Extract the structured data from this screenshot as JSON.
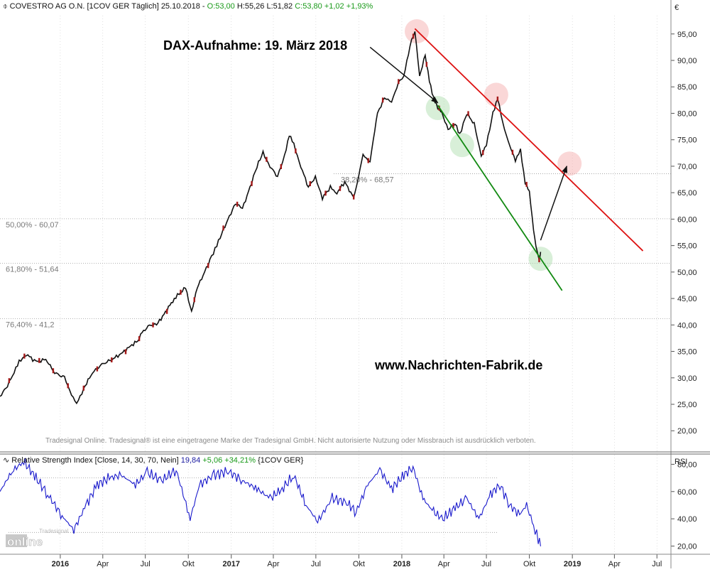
{
  "header": {
    "instrument": "COVESTRO AG O.N. [1COV GER Täglich]",
    "date": "25.10.2018",
    "open": "O:53,00",
    "high": "H:55,26",
    "low": "L:51,82",
    "close": "C:53,80",
    "change": "+1,02",
    "change_pct": "+1,93%"
  },
  "annotations": {
    "title": "DAX-Aufnahme: 19. März 2018",
    "website": "www.Nachrichten-Fabrik.de",
    "disclaimer": "Tradesignal Online. Tradesignal® ist eine eingetragene Marke der Tradesignal GmbH. Nicht autorisierte Nutzung oder Missbrauch ist ausdrücklich verboten.",
    "currency": "€"
  },
  "fib_levels": [
    {
      "label": "38,20% - 68,57",
      "value": 68.57
    },
    {
      "label": "50,00% - 60,07",
      "value": 60.07
    },
    {
      "label": "61,80% - 51,64",
      "value": 51.64
    },
    {
      "label": "76,40% - 41,2",
      "value": 41.2
    }
  ],
  "rsi": {
    "title": "Relative Strength Index [Close, 14, 30, 70, Nein]",
    "value": "19,84",
    "change": "+5,06",
    "change_pct": "+34,21%",
    "symbol": "{1COV GER}",
    "axis_label": "RSI",
    "levels": [
      30,
      70
    ],
    "y_ticks": [
      20,
      40,
      60,
      80
    ],
    "ylim": [
      14,
      87
    ]
  },
  "logo": {
    "top": "Tradesignal",
    "bottom": "online"
  },
  "chart_data": {
    "type": "line",
    "ylim": [
      16,
      99
    ],
    "y_ticks": [
      20,
      25,
      30,
      35,
      40,
      45,
      50,
      55,
      60,
      65,
      70,
      75,
      80,
      85,
      90,
      95
    ],
    "y_tick_labels": [
      "20,00",
      "25,00",
      "30,00",
      "35,00",
      "40,00",
      "45,00",
      "50,00",
      "55,00",
      "60,00",
      "65,00",
      "70,00",
      "75,00",
      "80,00",
      "85,00",
      "90,00",
      "95,00"
    ],
    "x_range": [
      "2015-08-25",
      "2019-07-31"
    ],
    "x_ticks": [
      {
        "date": "2016-01-01",
        "label": "2016"
      },
      {
        "date": "2016-04-01",
        "label": "Apr"
      },
      {
        "date": "2016-07-01",
        "label": "Jul"
      },
      {
        "date": "2016-10-01",
        "label": "Okt"
      },
      {
        "date": "2017-01-01",
        "label": "2017"
      },
      {
        "date": "2017-04-01",
        "label": "Apr"
      },
      {
        "date": "2017-07-01",
        "label": "Jul"
      },
      {
        "date": "2017-10-01",
        "label": "Okt"
      },
      {
        "date": "2018-01-01",
        "label": "2018"
      },
      {
        "date": "2018-04-01",
        "label": "Apr"
      },
      {
        "date": "2018-07-01",
        "label": "Jul"
      },
      {
        "date": "2018-10-01",
        "label": "Okt"
      },
      {
        "date": "2019-01-01",
        "label": "2019"
      },
      {
        "date": "2019-04-01",
        "label": "Apr"
      },
      {
        "date": "2019-07-01",
        "label": "Jul"
      }
    ],
    "price": [
      [
        "2015-08-25",
        26.5
      ],
      [
        "2015-09-10",
        28.5
      ],
      [
        "2015-10-05",
        33
      ],
      [
        "2015-10-20",
        34.5
      ],
      [
        "2015-11-10",
        33
      ],
      [
        "2015-12-01",
        33.5
      ],
      [
        "2015-12-20",
        31
      ],
      [
        "2016-01-10",
        30
      ],
      [
        "2016-01-25",
        27
      ],
      [
        "2016-02-05",
        25
      ],
      [
        "2016-02-20",
        28
      ],
      [
        "2016-03-10",
        31
      ],
      [
        "2016-03-30",
        32.5
      ],
      [
        "2016-04-20",
        33.5
      ],
      [
        "2016-05-10",
        34.5
      ],
      [
        "2016-05-30",
        36
      ],
      [
        "2016-06-15",
        37
      ],
      [
        "2016-06-24",
        38.5
      ],
      [
        "2016-07-10",
        40
      ],
      [
        "2016-07-25",
        40
      ],
      [
        "2016-08-10",
        42
      ],
      [
        "2016-09-01",
        45
      ],
      [
        "2016-09-25",
        47
      ],
      [
        "2016-10-08",
        42.5
      ],
      [
        "2016-10-20",
        47
      ],
      [
        "2016-11-05",
        50
      ],
      [
        "2016-11-20",
        53
      ],
      [
        "2016-12-01",
        55
      ],
      [
        "2016-12-15",
        58
      ],
      [
        "2017-01-10",
        63
      ],
      [
        "2017-01-25",
        62
      ],
      [
        "2017-02-10",
        66
      ],
      [
        "2017-02-25",
        70
      ],
      [
        "2017-03-10",
        72.5
      ],
      [
        "2017-03-25",
        70
      ],
      [
        "2017-04-10",
        68
      ],
      [
        "2017-04-25",
        72
      ],
      [
        "2017-05-05",
        76
      ],
      [
        "2017-05-15",
        74
      ],
      [
        "2017-05-30",
        70
      ],
      [
        "2017-06-15",
        66
      ],
      [
        "2017-06-30",
        68
      ],
      [
        "2017-07-15",
        64
      ],
      [
        "2017-08-01",
        66
      ],
      [
        "2017-08-15",
        65
      ],
      [
        "2017-09-01",
        67
      ],
      [
        "2017-09-20",
        64
      ],
      [
        "2017-09-30",
        68
      ],
      [
        "2017-10-10",
        72
      ],
      [
        "2017-10-25",
        71
      ],
      [
        "2017-11-01",
        75
      ],
      [
        "2017-11-10",
        80
      ],
      [
        "2017-11-25",
        83
      ],
      [
        "2017-12-10",
        82
      ],
      [
        "2017-12-25",
        86
      ],
      [
        "2018-01-05",
        87
      ],
      [
        "2018-01-15",
        91
      ],
      [
        "2018-01-22",
        94
      ],
      [
        "2018-01-29",
        95.5
      ],
      [
        "2018-02-08",
        87
      ],
      [
        "2018-02-20",
        91
      ],
      [
        "2018-03-01",
        86
      ],
      [
        "2018-03-10",
        83
      ],
      [
        "2018-03-19",
        81
      ],
      [
        "2018-03-28",
        80
      ],
      [
        "2018-04-10",
        77
      ],
      [
        "2018-04-25",
        78
      ],
      [
        "2018-05-05",
        76
      ],
      [
        "2018-05-20",
        80
      ],
      [
        "2018-06-05",
        78
      ],
      [
        "2018-06-20",
        72
      ],
      [
        "2018-07-01",
        74
      ],
      [
        "2018-07-15",
        80
      ],
      [
        "2018-07-25",
        83
      ],
      [
        "2018-08-05",
        78
      ],
      [
        "2018-08-20",
        74
      ],
      [
        "2018-09-01",
        71
      ],
      [
        "2018-09-12",
        73
      ],
      [
        "2018-09-22",
        67
      ],
      [
        "2018-10-01",
        65
      ],
      [
        "2018-10-10",
        58
      ],
      [
        "2018-10-15",
        55
      ],
      [
        "2018-10-22",
        52
      ],
      [
        "2018-10-25",
        53.8
      ]
    ],
    "rsi_values": [
      [
        "2015-08-25",
        60
      ],
      [
        "2015-09-20",
        75
      ],
      [
        "2015-10-15",
        82
      ],
      [
        "2015-11-10",
        70
      ],
      [
        "2015-12-05",
        58
      ],
      [
        "2016-01-05",
        42
      ],
      [
        "2016-01-30",
        32
      ],
      [
        "2016-02-25",
        50
      ],
      [
        "2016-03-20",
        65
      ],
      [
        "2016-04-15",
        70
      ],
      [
        "2016-05-10",
        72
      ],
      [
        "2016-06-10",
        65
      ],
      [
        "2016-07-05",
        74
      ],
      [
        "2016-08-05",
        68
      ],
      [
        "2016-09-05",
        76
      ],
      [
        "2016-10-05",
        40
      ],
      [
        "2016-10-25",
        65
      ],
      [
        "2016-11-25",
        72
      ],
      [
        "2016-12-25",
        75
      ],
      [
        "2017-01-25",
        68
      ],
      [
        "2017-02-25",
        62
      ],
      [
        "2017-03-25",
        55
      ],
      [
        "2017-04-20",
        62
      ],
      [
        "2017-05-15",
        72
      ],
      [
        "2017-06-10",
        50
      ],
      [
        "2017-07-05",
        38
      ],
      [
        "2017-08-05",
        55
      ],
      [
        "2017-09-05",
        52
      ],
      [
        "2017-09-25",
        45
      ],
      [
        "2017-10-20",
        65
      ],
      [
        "2017-11-15",
        76
      ],
      [
        "2017-12-10",
        62
      ],
      [
        "2018-01-05",
        72
      ],
      [
        "2018-01-25",
        78
      ],
      [
        "2018-02-15",
        55
      ],
      [
        "2018-03-10",
        45
      ],
      [
        "2018-03-30",
        40
      ],
      [
        "2018-04-25",
        48
      ],
      [
        "2018-05-20",
        55
      ],
      [
        "2018-06-15",
        40
      ],
      [
        "2018-07-10",
        58
      ],
      [
        "2018-07-30",
        65
      ],
      [
        "2018-08-20",
        50
      ],
      [
        "2018-09-10",
        43
      ],
      [
        "2018-09-25",
        50
      ],
      [
        "2018-10-10",
        35
      ],
      [
        "2018-10-20",
        25
      ],
      [
        "2018-10-25",
        19.84
      ]
    ],
    "trend_lines": [
      {
        "color": "#dd1111",
        "from": [
          "2018-01-29",
          96
        ],
        "to": [
          "2019-06-01",
          54
        ]
      },
      {
        "color": "#128a12",
        "from": [
          "2018-03-19",
          81.5
        ],
        "to": [
          "2018-12-10",
          46.5
        ]
      }
    ],
    "arrows": [
      {
        "from": [
          "2017-10-25",
          92.5
        ],
        "to": [
          "2018-03-19",
          82
        ]
      },
      {
        "from": [
          "2018-10-25",
          56
        ],
        "to": [
          "2018-12-20",
          70
        ]
      }
    ],
    "highlights": [
      {
        "date": "2018-02-02",
        "value": 95.5,
        "color": "#f4a6a6"
      },
      {
        "date": "2018-07-22",
        "value": 83.5,
        "color": "#f4a6a6"
      },
      {
        "date": "2018-12-26",
        "value": 70.5,
        "color": "#f4a6a6"
      },
      {
        "date": "2018-03-19",
        "value": 81,
        "color": "#a9dba9"
      },
      {
        "date": "2018-05-10",
        "value": 74,
        "color": "#a9dba9"
      },
      {
        "date": "2018-10-25",
        "value": 52.5,
        "color": "#a9dba9"
      }
    ]
  }
}
